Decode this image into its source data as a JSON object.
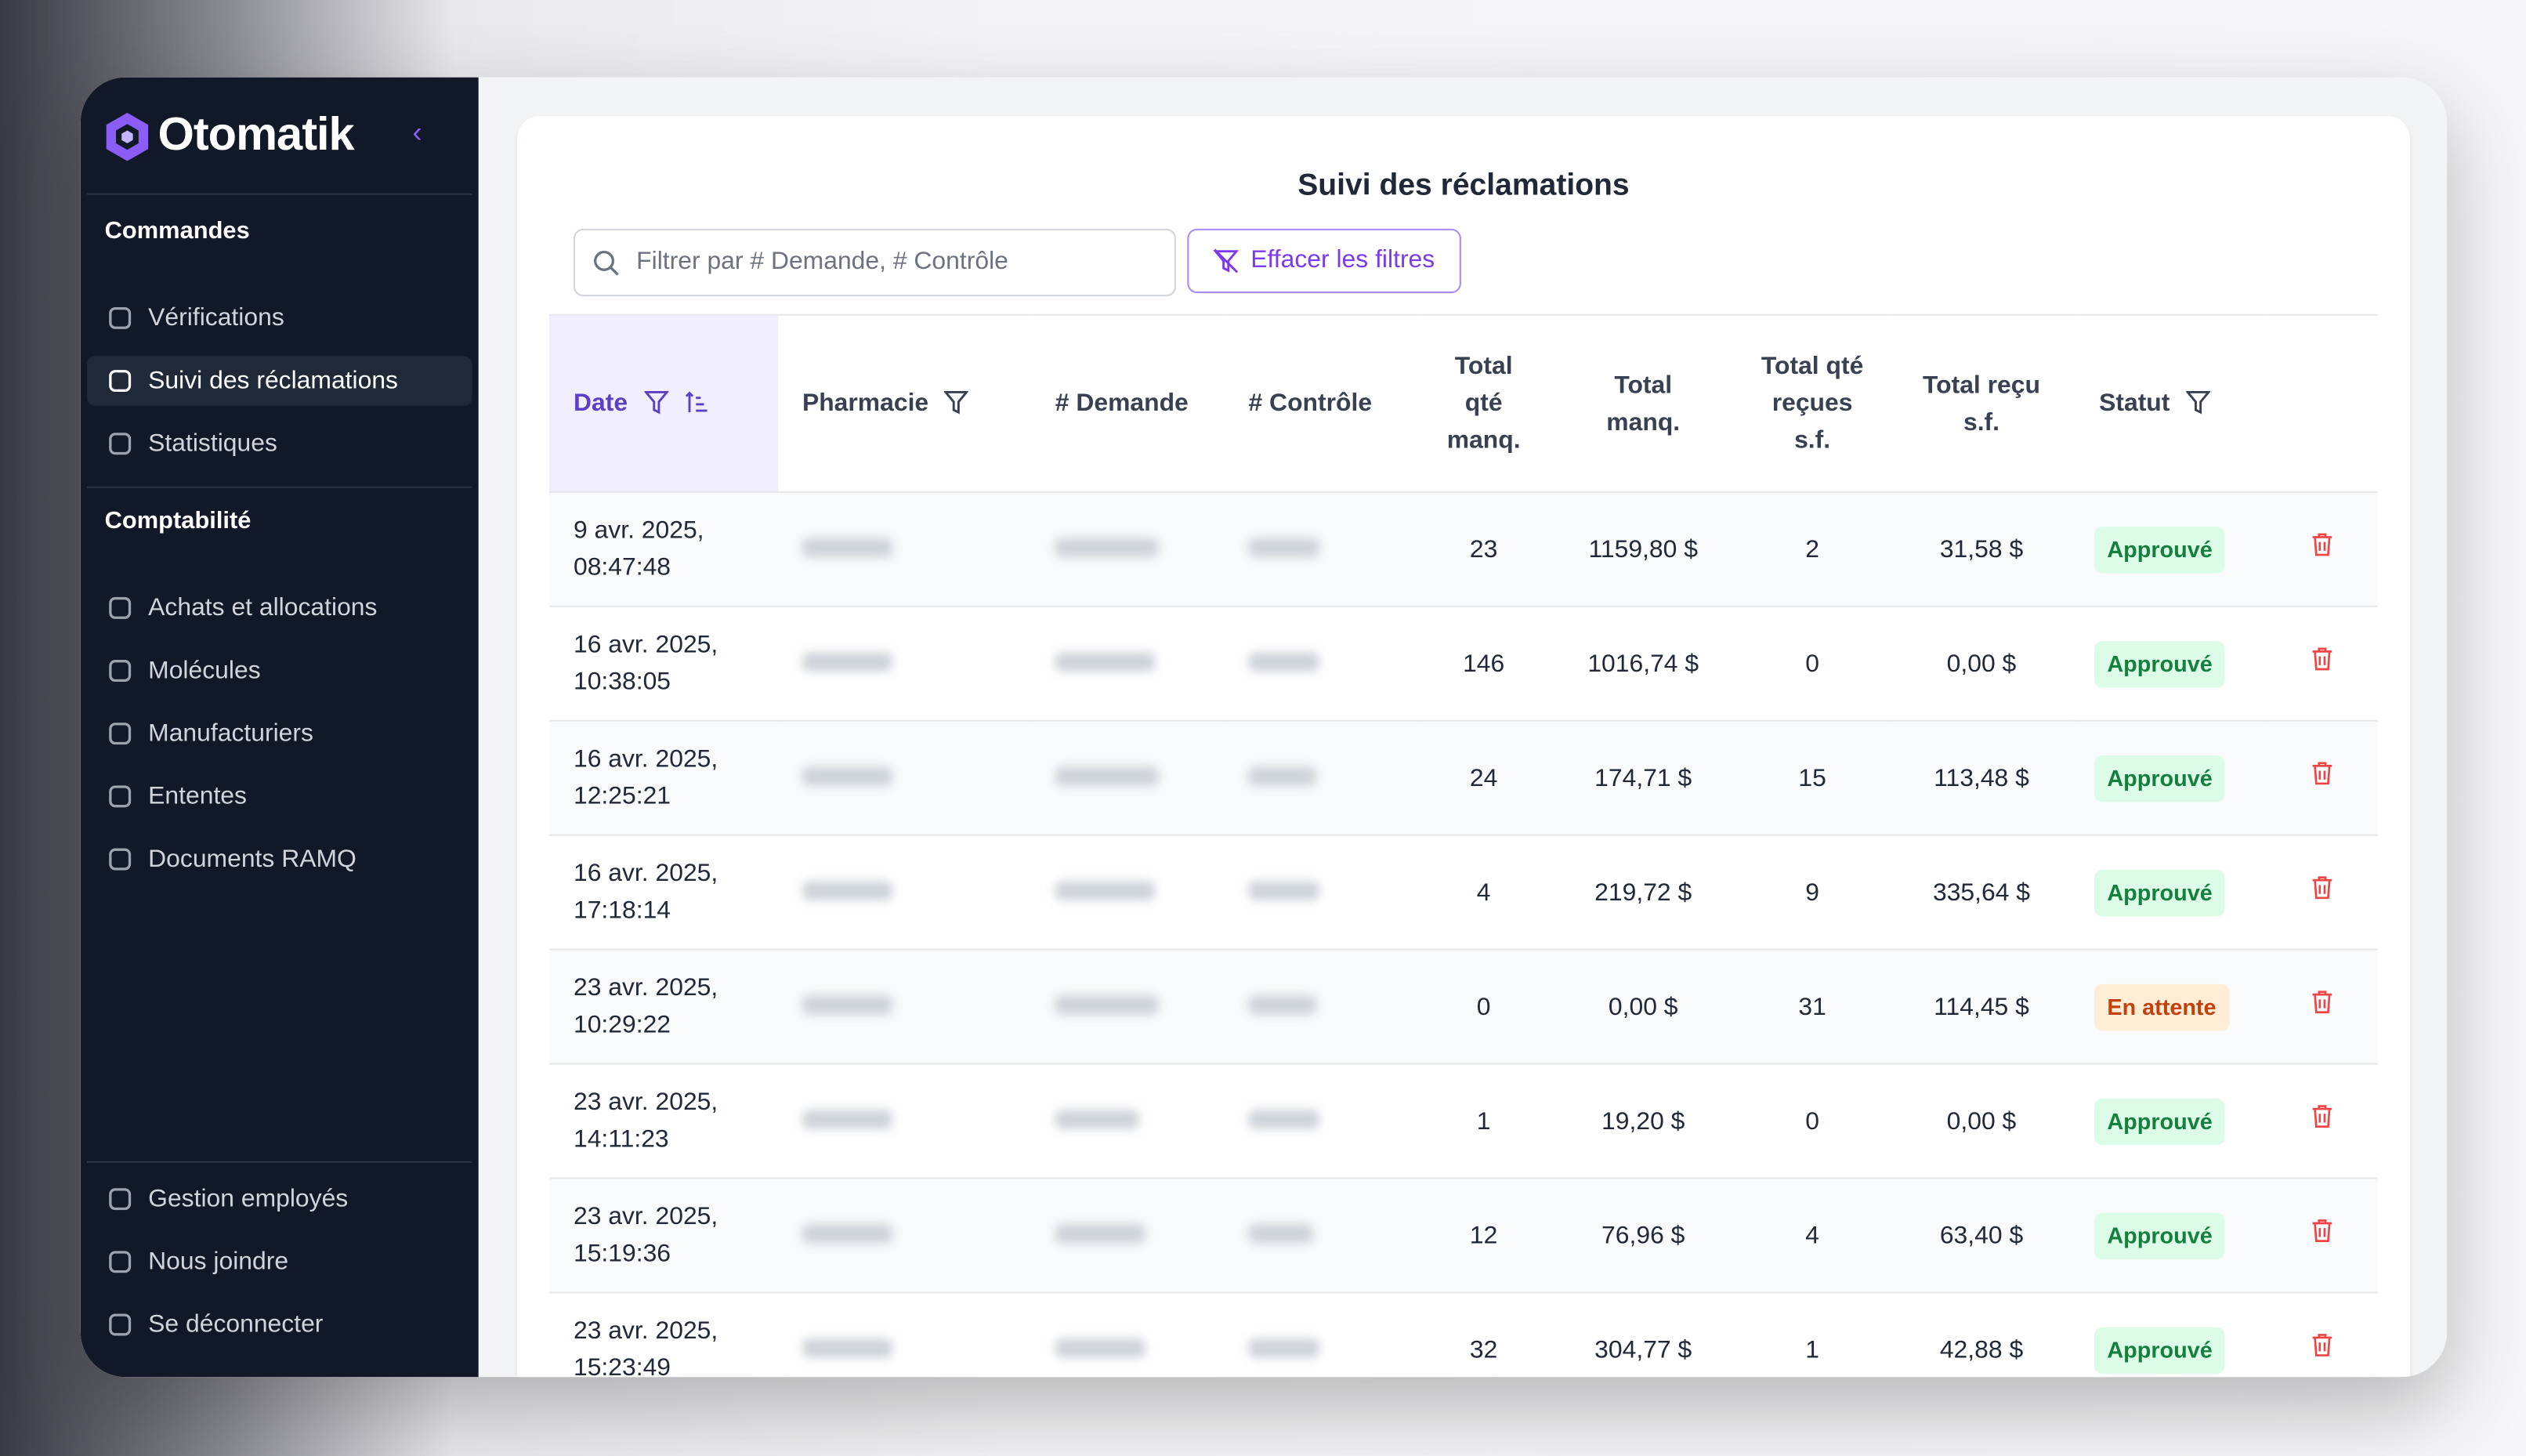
{
  "sidebar": {
    "brand": "Otomatik",
    "sections": [
      {
        "title": "Commandes",
        "items": [
          "Vérifications",
          "Suivi des réclamations",
          "Statistiques"
        ]
      },
      {
        "title": "Comptabilité",
        "items": [
          "Achats et allocations",
          "Molécules",
          "Manufacturiers",
          "Ententes",
          "Documents RAMQ"
        ]
      }
    ],
    "footer_items": [
      "Gestion employés",
      "Nous joindre",
      "Se déconnecter"
    ],
    "active": "Suivi des réclamations"
  },
  "page": {
    "title": "Suivi des réclamations",
    "search_placeholder": "Filtrer par # Demande, # Contrôle",
    "clear_filters": "Effacer les filtres"
  },
  "table": {
    "headers": [
      "Date",
      "Pharmacie",
      "# Demande",
      "# Contrôle",
      "Total qté manq.",
      "Total manq.",
      "Total qté reçues s.f.",
      "Total reçu s.f.",
      "Statut"
    ],
    "rows": [
      {
        "date": "9 avr. 2025, 08:47:48",
        "qte_manq": "23",
        "manq": "1159,80 $",
        "qte_recues": "2",
        "recu": "31,58 $",
        "statut": "Approuvé",
        "status_color": "#15803d",
        "status_bg": "#dcfce7"
      },
      {
        "date": "16 avr. 2025, 10:38:05",
        "qte_manq": "146",
        "manq": "1016,74 $",
        "qte_recues": "0",
        "recu": "0,00 $",
        "statut": "Approuvé",
        "status_color": "#15803d",
        "status_bg": "#dcfce7"
      },
      {
        "date": "16 avr. 2025, 12:25:21",
        "qte_manq": "24",
        "manq": "174,71 $",
        "qte_recues": "15",
        "recu": "113,48 $",
        "statut": "Approuvé",
        "status_color": "#15803d",
        "status_bg": "#dcfce7"
      },
      {
        "date": "16 avr. 2025, 17:18:14",
        "qte_manq": "4",
        "manq": "219,72 $",
        "qte_recues": "9",
        "recu": "335,64 $",
        "statut": "Approuvé",
        "status_color": "#15803d",
        "status_bg": "#dcfce7"
      },
      {
        "date": "23 avr. 2025, 10:29:22",
        "qte_manq": "0",
        "manq": "0,00 $",
        "qte_recues": "31",
        "recu": "114,45 $",
        "statut": "En attente",
        "status_color": "#c2410c",
        "status_bg": "#ffedd5"
      },
      {
        "date": "23 avr. 2025, 14:11:23",
        "qte_manq": "1",
        "manq": "19,20 $",
        "qte_recues": "0",
        "recu": "0,00 $",
        "statut": "Approuvé",
        "status_color": "#15803d",
        "status_bg": "#dcfce7"
      },
      {
        "date": "23 avr. 2025, 15:19:36",
        "qte_manq": "12",
        "manq": "76,96 $",
        "qte_recues": "4",
        "recu": "63,40 $",
        "statut": "Approuvé",
        "status_color": "#15803d",
        "status_bg": "#dcfce7"
      },
      {
        "date": "23 avr. 2025, 15:23:49",
        "qte_manq": "32",
        "manq": "304,77 $",
        "qte_recues": "1",
        "recu": "42,88 $",
        "statut": "Approuvé",
        "status_color": "#15803d",
        "status_bg": "#dcfce7"
      }
    ]
  }
}
